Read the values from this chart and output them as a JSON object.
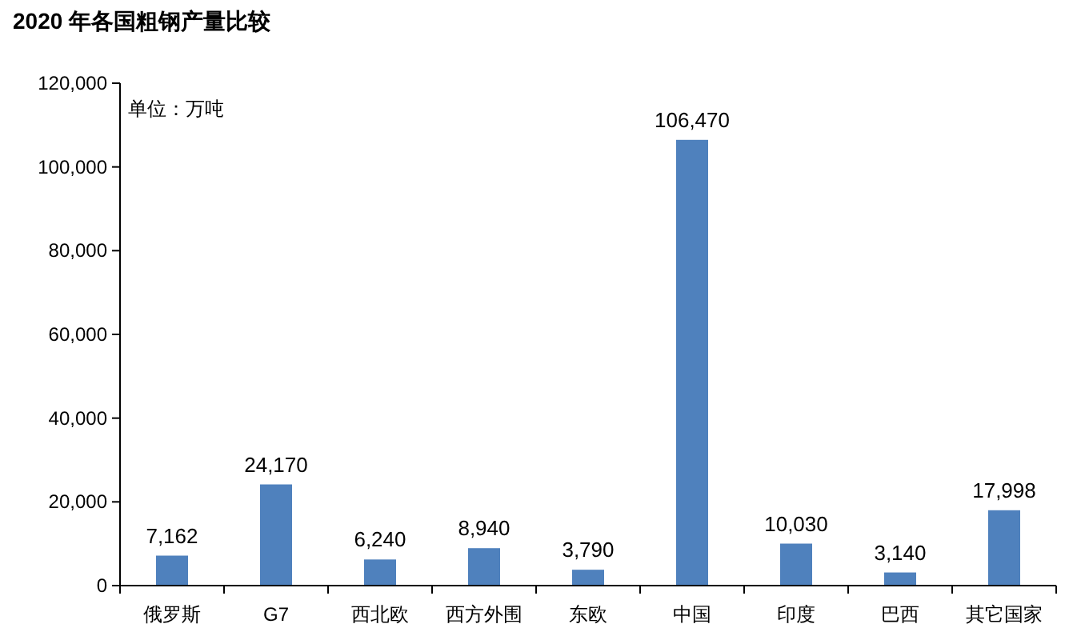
{
  "chart_data": {
    "type": "bar",
    "title": "2020 年各国粗钢产量比较",
    "annotations": [
      "单位：万吨"
    ],
    "categories": [
      "俄罗斯",
      "G7",
      "西北欧",
      "西方外围",
      "东欧",
      "中国",
      "印度",
      "巴西",
      "其它国家"
    ],
    "values": [
      7162,
      24170,
      6240,
      8940,
      3790,
      106470,
      10030,
      3140,
      17998
    ],
    "value_labels": [
      "7,162",
      "24,170",
      "6,240",
      "8,940",
      "3,790",
      "106,470",
      "10,030",
      "3,140",
      "17,998"
    ],
    "color": "#4f81bd",
    "grid": false,
    "ylim": [
      0,
      120000
    ],
    "yticks": [
      {
        "value": 0,
        "label": "0"
      },
      {
        "value": 20000,
        "label": "20,000"
      },
      {
        "value": 40000,
        "label": "40,000"
      },
      {
        "value": 60000,
        "label": "60,000"
      },
      {
        "value": 80000,
        "label": "80,000"
      },
      {
        "value": 100000,
        "label": "100,000"
      },
      {
        "value": 120000,
        "label": "120,000"
      }
    ]
  }
}
